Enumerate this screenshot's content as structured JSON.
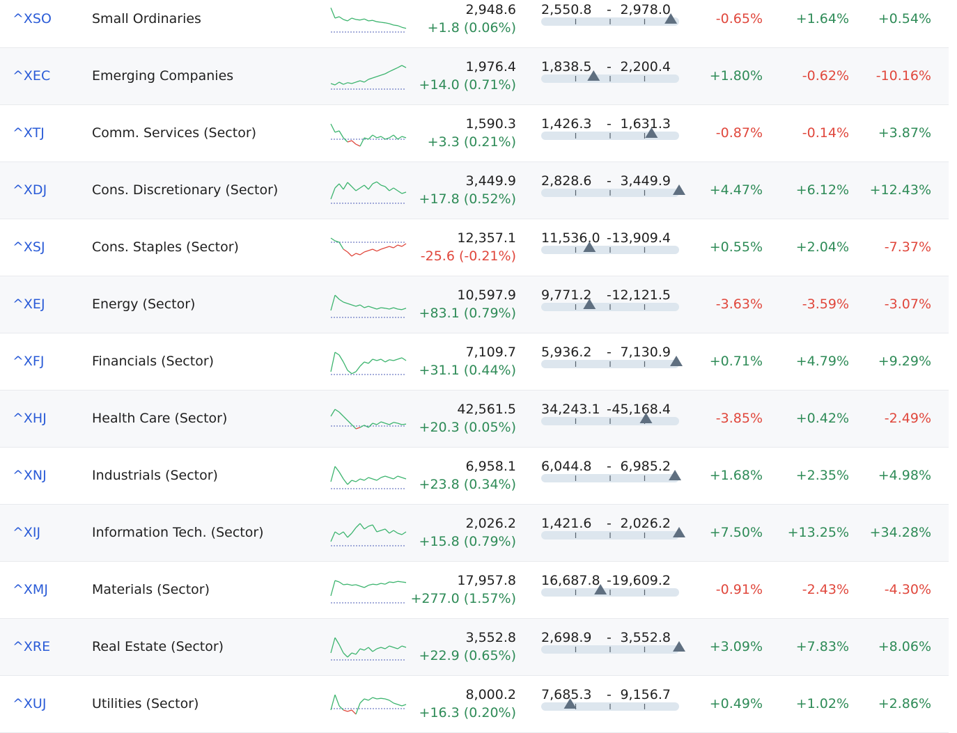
{
  "colors": {
    "positive": "#2e8b57",
    "negative": "#e0473c",
    "link": "#2a5bd7",
    "range_track": "#dde6ee",
    "range_marker": "#5f6f80",
    "spark_up": "#3cb46e",
    "spark_down": "#e0473c",
    "spark_baseline": "#4a5ab5"
  },
  "rows": [
    {
      "code": "^XSO",
      "name": "Small Ordinaries",
      "last": "2,948.6",
      "change": "+1.8 (0.06%)",
      "range_low": "2,550.8",
      "range_high": "2,978.0",
      "range_pos": 0.94,
      "pct1": "-0.65%",
      "pct2": "+1.64%",
      "pct3": "+0.54%",
      "spark": [
        0.92,
        0.55,
        0.6,
        0.5,
        0.45,
        0.55,
        0.5,
        0.48,
        0.52,
        0.45,
        0.47,
        0.42,
        0.4,
        0.38,
        0.35,
        0.3,
        0.28,
        0.22,
        0.18
      ],
      "spark_base": 0.05
    },
    {
      "code": "^XEC",
      "name": "Emerging Companies",
      "last": "1,976.4",
      "change": "+14.0 (0.71%)",
      "range_low": "1,838.5",
      "range_high": "2,200.4",
      "range_pos": 0.38,
      "pct1": "+1.80%",
      "pct2": "-0.62%",
      "pct3": "-10.16%",
      "spark": [
        0.25,
        0.2,
        0.3,
        0.22,
        0.28,
        0.25,
        0.3,
        0.35,
        0.3,
        0.4,
        0.45,
        0.5,
        0.55,
        0.6,
        0.68,
        0.75,
        0.82,
        0.9,
        0.82
      ],
      "spark_base": 0.05
    },
    {
      "code": "^XTJ",
      "name": "Comm. Services (Sector)",
      "last": "1,590.3",
      "change": "+3.3 (0.21%)",
      "range_low": "1,426.3",
      "range_high": "1,631.3",
      "range_pos": 0.8,
      "pct1": "-0.87%",
      "pct2": "-0.14%",
      "pct3": "+3.87%",
      "spark": [
        0.85,
        0.55,
        0.6,
        0.35,
        0.2,
        0.25,
        0.12,
        0.05,
        0.35,
        0.3,
        0.45,
        0.35,
        0.4,
        0.3,
        0.35,
        0.45,
        0.3,
        0.4,
        0.35
      ],
      "spark_base": 0.3
    },
    {
      "code": "^XDJ",
      "name": "Cons. Discretionary (Sector)",
      "last": "3,449.9",
      "change": "+17.8 (0.52%)",
      "range_low": "2,828.6",
      "range_high": "3,449.9",
      "range_pos": 1.0,
      "pct1": "+4.47%",
      "pct2": "+6.12%",
      "pct3": "+12.43%",
      "spark": [
        0.2,
        0.6,
        0.75,
        0.55,
        0.8,
        0.65,
        0.5,
        0.6,
        0.7,
        0.55,
        0.75,
        0.82,
        0.7,
        0.65,
        0.5,
        0.6,
        0.5,
        0.4,
        0.45
      ],
      "spark_base": 0.05
    },
    {
      "code": "^XSJ",
      "name": "Cons. Staples (Sector)",
      "last": "12,357.1",
      "change": "-25.6 (-0.21%)",
      "range_low": "11,536.0",
      "range_high": "13,909.4",
      "range_pos": 0.35,
      "pct1": "+0.55%",
      "pct2": "+2.04%",
      "pct3": "-7.37%",
      "spark": [
        0.85,
        0.75,
        0.7,
        0.45,
        0.35,
        0.2,
        0.3,
        0.25,
        0.35,
        0.4,
        0.45,
        0.38,
        0.45,
        0.5,
        0.55,
        0.5,
        0.6,
        0.55,
        0.65
      ],
      "spark_base": 0.7
    },
    {
      "code": "^XEJ",
      "name": "Energy (Sector)",
      "last": "10,597.9",
      "change": "+83.1 (0.79%)",
      "range_low": "9,771.2",
      "range_high": "12,121.5",
      "range_pos": 0.35,
      "pct1": "-3.63%",
      "pct2": "-3.59%",
      "pct3": "-3.07%",
      "spark": [
        0.3,
        0.85,
        0.7,
        0.6,
        0.55,
        0.5,
        0.45,
        0.5,
        0.4,
        0.45,
        0.4,
        0.35,
        0.4,
        0.38,
        0.35,
        0.4,
        0.35,
        0.33,
        0.38
      ],
      "spark_base": 0.05
    },
    {
      "code": "^XFJ",
      "name": "Financials (Sector)",
      "last": "7,109.7",
      "change": "+31.1 (0.44%)",
      "range_low": "5,936.2",
      "range_high": "7,130.9",
      "range_pos": 0.98,
      "pct1": "+0.71%",
      "pct2": "+4.79%",
      "pct3": "+9.29%",
      "spark": [
        0.15,
        0.85,
        0.75,
        0.5,
        0.2,
        0.08,
        0.15,
        0.35,
        0.5,
        0.45,
        0.6,
        0.55,
        0.6,
        0.5,
        0.58,
        0.55,
        0.6,
        0.65,
        0.55
      ],
      "spark_base": 0.05
    },
    {
      "code": "^XHJ",
      "name": "Health Care (Sector)",
      "last": "42,561.5",
      "change": "+20.3 (0.05%)",
      "range_low": "34,243.1",
      "range_high": "45,168.4",
      "range_pos": 0.76,
      "pct1": "-3.85%",
      "pct2": "+0.42%",
      "pct3": "-2.49%",
      "spark": [
        0.6,
        0.85,
        0.75,
        0.6,
        0.45,
        0.3,
        0.15,
        0.2,
        0.28,
        0.2,
        0.35,
        0.3,
        0.4,
        0.35,
        0.3,
        0.38,
        0.35,
        0.3,
        0.32
      ],
      "spark_base": 0.25
    },
    {
      "code": "^XNJ",
      "name": "Industrials (Sector)",
      "last": "6,958.1",
      "change": "+23.8 (0.34%)",
      "range_low": "6,044.8",
      "range_high": "6,985.2",
      "range_pos": 0.97,
      "pct1": "+1.68%",
      "pct2": "+2.35%",
      "pct3": "+4.98%",
      "spark": [
        0.3,
        0.85,
        0.65,
        0.4,
        0.2,
        0.35,
        0.3,
        0.4,
        0.35,
        0.45,
        0.4,
        0.35,
        0.45,
        0.5,
        0.45,
        0.4,
        0.5,
        0.45,
        0.4
      ],
      "spark_base": 0.05
    },
    {
      "code": "^XIJ",
      "name": "Information Tech. (Sector)",
      "last": "2,026.2",
      "change": "+15.8 (0.79%)",
      "range_low": "1,421.6",
      "range_high": "2,026.2",
      "range_pos": 1.0,
      "pct1": "+7.50%",
      "pct2": "+13.25%",
      "pct3": "+34.28%",
      "spark": [
        0.2,
        0.55,
        0.45,
        0.55,
        0.35,
        0.5,
        0.7,
        0.85,
        0.65,
        0.75,
        0.8,
        0.55,
        0.6,
        0.65,
        0.5,
        0.6,
        0.5,
        0.45,
        0.55
      ],
      "spark_base": 0.05
    },
    {
      "code": "^XMJ",
      "name": "Materials (Sector)",
      "last": "17,957.8",
      "change": "+277.0 (1.57%)",
      "range_low": "16,687.8",
      "range_high": "19,609.2",
      "range_pos": 0.43,
      "pct1": "-0.91%",
      "pct2": "-2.43%",
      "pct3": "-4.30%",
      "spark": [
        0.3,
        0.85,
        0.8,
        0.7,
        0.72,
        0.68,
        0.7,
        0.65,
        0.6,
        0.68,
        0.72,
        0.7,
        0.75,
        0.72,
        0.8,
        0.78,
        0.82,
        0.8,
        0.78
      ],
      "spark_base": 0.05
    },
    {
      "code": "^XRE",
      "name": "Real Estate (Sector)",
      "last": "3,552.8",
      "change": "+22.9 (0.65%)",
      "range_low": "2,698.9",
      "range_high": "3,552.8",
      "range_pos": 1.0,
      "pct1": "+3.09%",
      "pct2": "+7.83%",
      "pct3": "+8.06%",
      "spark": [
        0.3,
        0.85,
        0.6,
        0.3,
        0.15,
        0.3,
        0.25,
        0.45,
        0.4,
        0.5,
        0.35,
        0.45,
        0.5,
        0.45,
        0.55,
        0.5,
        0.45,
        0.55,
        0.5
      ],
      "spark_base": 0.05
    },
    {
      "code": "^XUJ",
      "name": "Utilities (Sector)",
      "last": "8,000.2",
      "change": "+16.3 (0.20%)",
      "range_low": "7,685.3",
      "range_high": "9,156.7",
      "range_pos": 0.21,
      "pct1": "+0.49%",
      "pct2": "+1.02%",
      "pct3": "+2.86%",
      "spark": [
        0.3,
        0.85,
        0.45,
        0.3,
        0.25,
        0.3,
        0.15,
        0.55,
        0.7,
        0.65,
        0.75,
        0.7,
        0.72,
        0.7,
        0.65,
        0.55,
        0.5,
        0.45,
        0.5
      ],
      "spark_base": 0.35
    }
  ]
}
